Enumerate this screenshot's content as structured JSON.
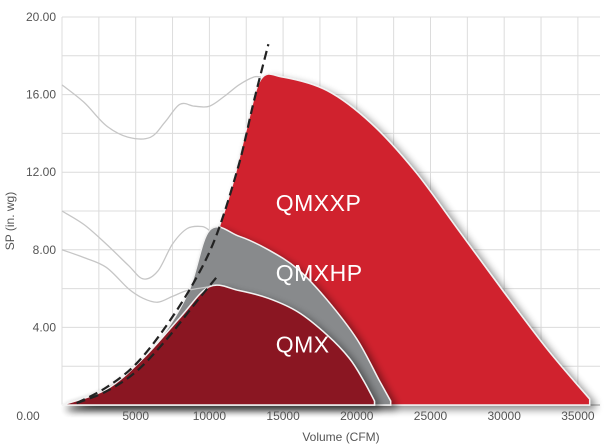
{
  "chart_data": {
    "type": "area",
    "title": "",
    "xlabel": "Volume (CFM)",
    "ylabel": "SP (in. wg)",
    "xlim": [
      0,
      36500
    ],
    "ylim": [
      0,
      20
    ],
    "x_ticks": [
      "5000",
      "10000",
      "15000",
      "20000",
      "25000",
      "30000",
      "35000"
    ],
    "y_ticks": [
      "0.00",
      "4.00",
      "8.00",
      "12.00",
      "16.00",
      "20.00"
    ],
    "grid": true,
    "series": [
      {
        "name": "QMXXP",
        "color": "#d0202e",
        "points": [
          [
            0,
            0
          ],
          [
            3000,
            0.9
          ],
          [
            6000,
            2.8
          ],
          [
            8500,
            5.6
          ],
          [
            10000,
            7.8
          ],
          [
            11500,
            11.2
          ],
          [
            12500,
            14.2
          ],
          [
            13500,
            16.8
          ],
          [
            15000,
            16.9
          ],
          [
            18000,
            16.2
          ],
          [
            21000,
            14.5
          ],
          [
            24000,
            12.0
          ],
          [
            27000,
            8.9
          ],
          [
            30000,
            5.8
          ],
          [
            33000,
            2.8
          ],
          [
            35800,
            0.3
          ]
        ]
      },
      {
        "name": "QMXHP",
        "color": "#888a8c",
        "points": [
          [
            0,
            0
          ],
          [
            3000,
            0.9
          ],
          [
            6000,
            2.8
          ],
          [
            8500,
            5.7
          ],
          [
            10000,
            9.0
          ],
          [
            12000,
            8.7
          ],
          [
            14000,
            8.0
          ],
          [
            16000,
            7.0
          ],
          [
            18000,
            5.4
          ],
          [
            20000,
            3.4
          ],
          [
            21500,
            1.3
          ],
          [
            22300,
            0.2
          ]
        ]
      },
      {
        "name": "QMX",
        "color": "#8a1821",
        "points": [
          [
            0,
            0
          ],
          [
            3000,
            0.8
          ],
          [
            5500,
            2.4
          ],
          [
            8000,
            4.5
          ],
          [
            10000,
            6.1
          ],
          [
            12000,
            5.9
          ],
          [
            14000,
            5.5
          ],
          [
            16000,
            4.8
          ],
          [
            18000,
            3.6
          ],
          [
            19500,
            2.4
          ],
          [
            20500,
            1.2
          ],
          [
            21200,
            0.2
          ]
        ]
      }
    ],
    "system_curve": [
      [
        1000,
        0.1
      ],
      [
        3000,
        0.9
      ],
      [
        5000,
        2.1
      ],
      [
        7000,
        4.0
      ],
      [
        9000,
        6.4
      ],
      [
        10500,
        8.8
      ],
      [
        12000,
        12.4
      ],
      [
        13000,
        15.6
      ],
      [
        14000,
        18.6
      ]
    ],
    "system_curve_low": [
      [
        1000,
        0.1
      ],
      [
        3000,
        0.7
      ],
      [
        5000,
        1.7
      ],
      [
        7000,
        3.3
      ],
      [
        9000,
        5.2
      ],
      [
        10500,
        6.6
      ]
    ],
    "surge_lines": [
      [
        [
          0,
          16.5
        ],
        [
          1500,
          15.6
        ],
        [
          3000,
          14.4
        ],
        [
          4500,
          13.8
        ],
        [
          6000,
          13.8
        ],
        [
          7000,
          14.6
        ],
        [
          8000,
          15.5
        ],
        [
          9000,
          15.4
        ],
        [
          10000,
          15.4
        ],
        [
          11000,
          15.9
        ],
        [
          12000,
          16.5
        ],
        [
          13000,
          16.9
        ],
        [
          13500,
          16.9
        ]
      ],
      [
        [
          0,
          10.0
        ],
        [
          1500,
          9.3
        ],
        [
          3000,
          8.3
        ],
        [
          4500,
          7.2
        ],
        [
          5500,
          6.5
        ],
        [
          6500,
          6.9
        ],
        [
          7500,
          8.3
        ],
        [
          8500,
          9.1
        ],
        [
          9500,
          9.2
        ],
        [
          10000,
          9.0
        ]
      ],
      [
        [
          0,
          8.0
        ],
        [
          1500,
          7.6
        ],
        [
          3000,
          7.1
        ],
        [
          4500,
          6.0
        ],
        [
          5500,
          5.5
        ],
        [
          6500,
          5.3
        ],
        [
          7500,
          5.6
        ],
        [
          8500,
          5.9
        ],
        [
          10000,
          6.1
        ]
      ]
    ],
    "labels": [
      {
        "text": "QMXXP",
        "x": 14500,
        "y": 10.0
      },
      {
        "text": "QMXHP",
        "x": 14500,
        "y": 6.4
      },
      {
        "text": "QMX",
        "x": 14500,
        "y": 2.7
      }
    ]
  }
}
